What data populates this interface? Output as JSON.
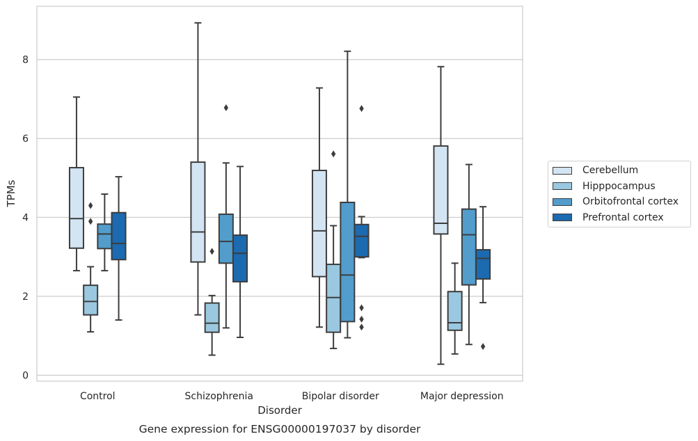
{
  "chart_data": {
    "type": "boxplot",
    "title": "Gene expression for ENSG00000197037 by disorder",
    "xlabel": "Disorder",
    "ylabel": "TPMs",
    "ylim": [
      -0.15,
      9.35
    ],
    "yticks": [
      0,
      2,
      4,
      6,
      8
    ],
    "grid": "horizontal",
    "legend_position": "right",
    "categories": [
      "Control",
      "Schizophrenia",
      "Bipolar disorder",
      "Major depression"
    ],
    "series": [
      {
        "name": "Cerebellum",
        "color": "#d3e4f3",
        "boxes": [
          {
            "whislo": 2.65,
            "q1": 3.22,
            "med": 3.97,
            "q3": 5.26,
            "whishi": 7.05,
            "fliers": []
          },
          {
            "whislo": 1.53,
            "q1": 2.87,
            "med": 3.63,
            "q3": 5.4,
            "whishi": 8.93,
            "fliers": []
          },
          {
            "whislo": 1.22,
            "q1": 2.5,
            "med": 3.66,
            "q3": 5.19,
            "whishi": 7.28,
            "fliers": []
          },
          {
            "whislo": 0.28,
            "q1": 3.58,
            "med": 3.85,
            "q3": 5.81,
            "whishi": 7.82,
            "fliers": []
          }
        ]
      },
      {
        "name": "Hipppocampus",
        "color": "#9ac8e0",
        "boxes": [
          {
            "whislo": 1.1,
            "q1": 1.53,
            "med": 1.87,
            "q3": 2.28,
            "whishi": 2.75,
            "fliers": [
              3.9,
              4.3
            ]
          },
          {
            "whislo": 0.51,
            "q1": 1.09,
            "med": 1.32,
            "q3": 1.83,
            "whishi": 2.02,
            "fliers": [
              3.14
            ]
          },
          {
            "whislo": 0.68,
            "q1": 1.09,
            "med": 1.97,
            "q3": 2.81,
            "whishi": 3.79,
            "fliers": [
              5.61
            ]
          },
          {
            "whislo": 0.54,
            "q1": 1.14,
            "med": 1.33,
            "q3": 2.12,
            "whishi": 2.84,
            "fliers": []
          }
        ]
      },
      {
        "name": "Orbitofrontal cortex",
        "color": "#529dcc",
        "boxes": [
          {
            "whislo": 2.65,
            "q1": 3.21,
            "med": 3.58,
            "q3": 3.83,
            "whishi": 4.59,
            "fliers": []
          },
          {
            "whislo": 1.2,
            "q1": 2.84,
            "med": 3.39,
            "q3": 4.08,
            "whishi": 5.38,
            "fliers": [
              6.78
            ]
          },
          {
            "whislo": 0.95,
            "q1": 1.36,
            "med": 2.54,
            "q3": 4.38,
            "whishi": 8.21,
            "fliers": []
          },
          {
            "whislo": 0.78,
            "q1": 2.29,
            "med": 3.56,
            "q3": 4.21,
            "whishi": 5.34,
            "fliers": []
          }
        ]
      },
      {
        "name": "Prefrontal cortex",
        "color": "#1c6aaf",
        "boxes": [
          {
            "whislo": 1.4,
            "q1": 2.93,
            "med": 3.34,
            "q3": 4.12,
            "whishi": 5.03,
            "fliers": []
          },
          {
            "whislo": 0.96,
            "q1": 2.37,
            "med": 3.09,
            "q3": 3.55,
            "whishi": 5.29,
            "fliers": []
          },
          {
            "whislo": 2.98,
            "q1": 3.0,
            "med": 3.52,
            "q3": 3.82,
            "whishi": 4.02,
            "fliers": [
              1.22,
              1.42,
              1.71,
              6.76
            ]
          },
          {
            "whislo": 1.84,
            "q1": 2.44,
            "med": 2.96,
            "q3": 3.18,
            "whishi": 4.27,
            "fliers": [
              0.73
            ]
          }
        ]
      }
    ]
  }
}
